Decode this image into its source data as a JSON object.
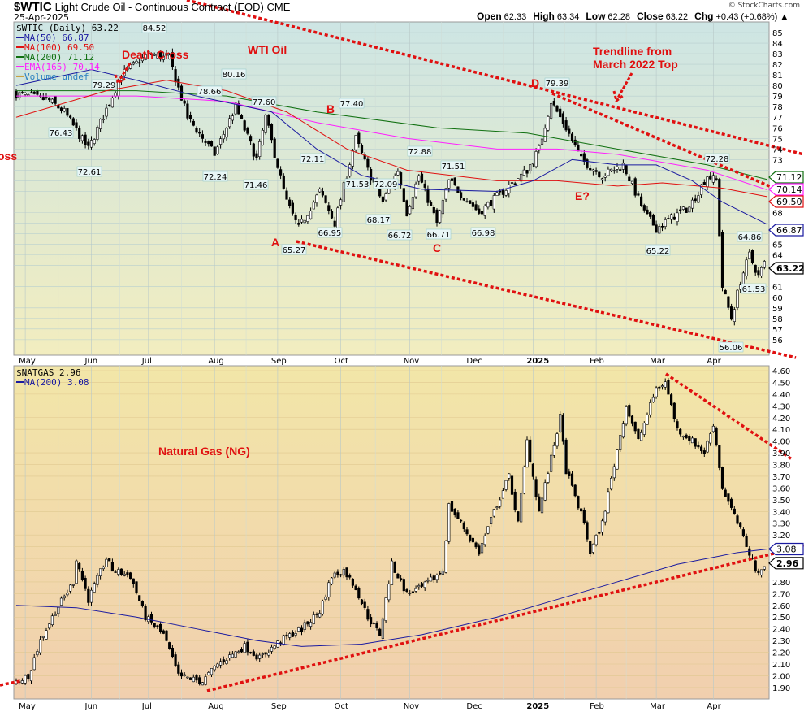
{
  "header": {
    "symbol": "$WTIC",
    "name": "Light Crude Oil - Continuous Contract (EOD) CME",
    "date": "25-Apr-2025",
    "copyright": "© StockCharts.com",
    "ohlc": [
      {
        "k": "Open",
        "v": "62.33"
      },
      {
        "k": "High",
        "v": "63.34"
      },
      {
        "k": "Low",
        "v": "62.28"
      },
      {
        "k": "Close",
        "v": "63.22"
      },
      {
        "k": "Chg",
        "v": "+0.43 (+0.68%) ▲"
      }
    ]
  },
  "colors": {
    "ma50": "#1a1aa0",
    "ma100": "#e01010",
    "ma200": "#107010",
    "ema165": "#ff20ff",
    "annotation": "#e01010"
  },
  "chart_data": [
    {
      "type": "candlestick",
      "title": "$WTIC (Daily) 63.22",
      "ylim": [
        55,
        86
      ],
      "months": [
        "May",
        "Jun",
        "Jul",
        "Aug",
        "Sep",
        "Oct",
        "Nov",
        "Dec",
        "2025",
        "Feb",
        "Mar",
        "Apr"
      ],
      "month_days": [
        3,
        25,
        44,
        66,
        87,
        108,
        131,
        152,
        172,
        193,
        213,
        232
      ],
      "legend": [
        "$WTIC (Daily) 63.22",
        "MA(50) 66.87",
        "MA(100) 69.50",
        "MA(200) 71.12",
        "EMA(165) 70.14",
        "Volume undef"
      ],
      "close_path": [
        [
          0,
          79.2
        ],
        [
          11,
          78.6
        ],
        [
          16,
          77.5
        ],
        [
          24,
          74
        ],
        [
          32,
          79
        ],
        [
          35,
          81
        ],
        [
          44,
          83
        ],
        [
          51,
          82.5
        ],
        [
          57,
          77
        ],
        [
          66,
          73.5
        ],
        [
          73,
          78
        ],
        [
          80,
          73
        ],
        [
          83,
          77
        ],
        [
          90,
          69
        ],
        [
          94,
          66.5
        ],
        [
          101,
          70
        ],
        [
          106,
          67
        ],
        [
          113,
          75
        ],
        [
          117,
          72
        ],
        [
          122,
          69
        ],
        [
          127,
          72
        ],
        [
          130,
          68
        ],
        [
          134,
          71.5
        ],
        [
          140,
          67
        ],
        [
          144,
          71
        ],
        [
          154,
          68
        ],
        [
          162,
          70
        ],
        [
          170,
          72
        ],
        [
          174,
          74
        ],
        [
          178,
          78.5
        ],
        [
          183,
          76
        ],
        [
          188,
          73
        ],
        [
          195,
          71.5
        ],
        [
          202,
          72.5
        ],
        [
          209,
          68
        ],
        [
          213,
          66.5
        ],
        [
          218,
          67.5
        ],
        [
          224,
          68.5
        ],
        [
          230,
          71.5
        ],
        [
          233,
          71
        ],
        [
          235,
          61
        ],
        [
          238,
          58
        ],
        [
          241,
          61.5
        ],
        [
          244,
          64
        ],
        [
          247,
          62
        ],
        [
          249,
          63.22
        ]
      ],
      "ma50": [
        [
          0,
          80
        ],
        [
          25,
          81.5
        ],
        [
          40,
          80.5
        ],
        [
          60,
          79
        ],
        [
          85,
          77.5
        ],
        [
          100,
          74
        ],
        [
          115,
          71.5
        ],
        [
          135,
          70.2
        ],
        [
          160,
          70
        ],
        [
          172,
          71
        ],
        [
          185,
          73
        ],
        [
          200,
          72.5
        ],
        [
          213,
          72.5
        ],
        [
          225,
          71
        ],
        [
          235,
          69
        ],
        [
          250,
          66.87
        ]
      ],
      "ma100": [
        [
          0,
          77
        ],
        [
          30,
          79.5
        ],
        [
          50,
          80.5
        ],
        [
          70,
          79.5
        ],
        [
          90,
          77.5
        ],
        [
          110,
          74
        ],
        [
          130,
          72
        ],
        [
          160,
          71
        ],
        [
          180,
          71
        ],
        [
          200,
          70.5
        ],
        [
          215,
          70.8
        ],
        [
          235,
          70.3
        ],
        [
          250,
          69.5
        ]
      ],
      "ma200": [
        [
          0,
          79.5
        ],
        [
          40,
          79.5
        ],
        [
          70,
          79
        ],
        [
          100,
          77.5
        ],
        [
          140,
          76
        ],
        [
          170,
          75.5
        ],
        [
          200,
          74
        ],
        [
          230,
          72.5
        ],
        [
          250,
          71.12
        ]
      ],
      "ema165": [
        [
          0,
          79
        ],
        [
          40,
          79
        ],
        [
          70,
          78.5
        ],
        [
          100,
          76.5
        ],
        [
          130,
          75
        ],
        [
          160,
          74
        ],
        [
          180,
          74
        ],
        [
          200,
          73.5
        ],
        [
          230,
          72
        ],
        [
          250,
          70.14
        ]
      ],
      "badges": [
        "71.12",
        "70.14",
        "69.50",
        "66.87",
        "63.22"
      ],
      "callouts": [
        "84.52",
        "79.29",
        "78.66",
        "80.16",
        "77.60",
        "76.43",
        "72.61",
        "72.24",
        "71.46",
        "77.40",
        "72.11",
        "71.53",
        "72.09",
        "68.17",
        "66.72",
        "72.88",
        "71.51",
        "66.71",
        "66.98",
        "66.95",
        "65.27",
        "79.39",
        "72.28",
        "65.22",
        "64.86",
        "61.53",
        "56.06"
      ],
      "annotations": [
        "Death Cross",
        "WTI Oil",
        "Trendline from",
        "March 2022 Top",
        "A",
        "B",
        "C",
        "D",
        "E?",
        "oss"
      ]
    },
    {
      "type": "candlestick",
      "title": "$NATGAS 2.96",
      "ylim": [
        1.85,
        4.62
      ],
      "legend": [
        "$NATGAS 2.96",
        "MA(200) 3.08"
      ],
      "close_path": [
        [
          0,
          1.95
        ],
        [
          4,
          2.0
        ],
        [
          8,
          2.3
        ],
        [
          13,
          2.55
        ],
        [
          19,
          2.8
        ],
        [
          20,
          3.0
        ],
        [
          24,
          2.65
        ],
        [
          30,
          3.0
        ],
        [
          32,
          2.9
        ],
        [
          38,
          2.85
        ],
        [
          43,
          2.5
        ],
        [
          49,
          2.35
        ],
        [
          54,
          2.0
        ],
        [
          62,
          1.95
        ],
        [
          67,
          2.1
        ],
        [
          76,
          2.25
        ],
        [
          81,
          2.15
        ],
        [
          88,
          2.3
        ],
        [
          95,
          2.4
        ],
        [
          101,
          2.55
        ],
        [
          105,
          2.85
        ],
        [
          109,
          2.9
        ],
        [
          113,
          2.75
        ],
        [
          117,
          2.5
        ],
        [
          121,
          2.35
        ],
        [
          125,
          2.95
        ],
        [
          130,
          2.7
        ],
        [
          135,
          2.75
        ],
        [
          142,
          2.9
        ],
        [
          144,
          3.45
        ],
        [
          148,
          3.3
        ],
        [
          154,
          3.05
        ],
        [
          159,
          3.4
        ],
        [
          164,
          3.7
        ],
        [
          167,
          3.3
        ],
        [
          170,
          4.0
        ],
        [
          174,
          3.4
        ],
        [
          178,
          3.85
        ],
        [
          181,
          4.2
        ],
        [
          183,
          3.75
        ],
        [
          189,
          3.3
        ],
        [
          191,
          3.05
        ],
        [
          195,
          3.3
        ],
        [
          199,
          3.8
        ],
        [
          203,
          4.3
        ],
        [
          207,
          4.0
        ],
        [
          213,
          4.45
        ],
        [
          216,
          4.5
        ],
        [
          220,
          4.1
        ],
        [
          225,
          4.0
        ],
        [
          229,
          3.9
        ],
        [
          232,
          4.15
        ],
        [
          235,
          3.6
        ],
        [
          240,
          3.3
        ],
        [
          244,
          3.05
        ],
        [
          247,
          2.85
        ],
        [
          249,
          2.96
        ]
      ],
      "ma200": [
        [
          0,
          2.6
        ],
        [
          20,
          2.58
        ],
        [
          40,
          2.5
        ],
        [
          60,
          2.4
        ],
        [
          80,
          2.3
        ],
        [
          95,
          2.25
        ],
        [
          115,
          2.27
        ],
        [
          135,
          2.35
        ],
        [
          160,
          2.5
        ],
        [
          180,
          2.65
        ],
        [
          200,
          2.8
        ],
        [
          220,
          2.95
        ],
        [
          240,
          3.05
        ],
        [
          250,
          3.08
        ]
      ],
      "badges": [
        "3.08",
        "2.96"
      ],
      "annotations": [
        "Natural Gas (NG)"
      ]
    }
  ]
}
